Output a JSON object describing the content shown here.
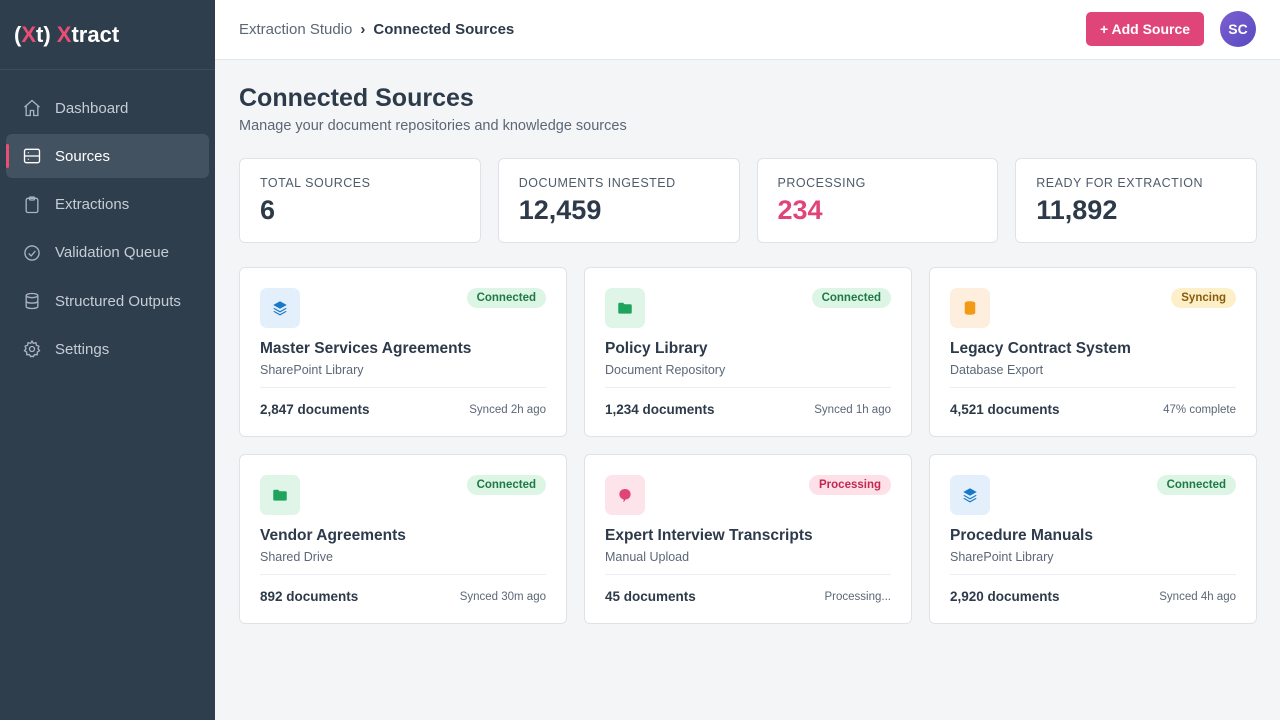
{
  "app": {
    "logo_paren_open": "(",
    "logo_x": "X",
    "logo_t_paren": "t)",
    "logo_space_x": "X",
    "logo_tract": "tract"
  },
  "sidebar": {
    "items": [
      {
        "label": "Dashboard",
        "icon": "home-icon"
      },
      {
        "label": "Sources",
        "icon": "database-icon",
        "active": true
      },
      {
        "label": "Extractions",
        "icon": "clipboard-icon"
      },
      {
        "label": "Validation Queue",
        "icon": "check-circle-icon"
      },
      {
        "label": "Structured Outputs",
        "icon": "cylinder-icon"
      },
      {
        "label": "Settings",
        "icon": "gear-icon"
      }
    ]
  },
  "header": {
    "breadcrumb_root": "Extraction Studio",
    "breadcrumb_sep": "›",
    "breadcrumb_current": "Connected Sources",
    "add_button": "+ Add Source",
    "avatar_initials": "SC"
  },
  "page": {
    "title": "Connected Sources",
    "subtitle": "Manage your document repositories and knowledge sources"
  },
  "stats": [
    {
      "label": "TOTAL SOURCES",
      "value": "6"
    },
    {
      "label": "DOCUMENTS INGESTED",
      "value": "12,459"
    },
    {
      "label": "PROCESSING",
      "value": "234",
      "accent": "#e0457a"
    },
    {
      "label": "READY FOR EXTRACTION",
      "value": "11,892"
    }
  ],
  "sources": [
    {
      "title": "Master Services Agreements",
      "type": "SharePoint Library",
      "status": "Connected",
      "documents": "2,847 documents",
      "sync": "Synced 2h ago",
      "icon": "layers-icon",
      "icon_bg": "#e3f0fc",
      "icon_color": "#1a78c8"
    },
    {
      "title": "Policy Library",
      "type": "Document Repository",
      "status": "Connected",
      "documents": "1,234 documents",
      "sync": "Synced 1h ago",
      "icon": "folder-icon",
      "icon_bg": "#dff5e8",
      "icon_color": "#1fa45d"
    },
    {
      "title": "Legacy Contract System",
      "type": "Database Export",
      "status": "Syncing",
      "documents": "4,521 documents",
      "sync": "47% complete",
      "icon": "database-icon",
      "icon_bg": "#fdeedd",
      "icon_color": "#f29a17"
    },
    {
      "title": "Vendor Agreements",
      "type": "Shared Drive",
      "status": "Connected",
      "documents": "892 documents",
      "sync": "Synced 30m ago",
      "icon": "folder-icon",
      "icon_bg": "#dff5e8",
      "icon_color": "#1fa45d"
    },
    {
      "title": "Expert Interview Transcripts",
      "type": "Manual Upload",
      "status": "Processing",
      "documents": "45 documents",
      "sync": "Processing...",
      "icon": "chat-bubble-icon",
      "icon_bg": "#fde3ea",
      "icon_color": "#e0457a"
    },
    {
      "title": "Procedure Manuals",
      "type": "SharePoint Library",
      "status": "Connected",
      "documents": "2,920 documents",
      "sync": "Synced 4h ago",
      "icon": "layers-icon",
      "icon_bg": "#e3f0fc",
      "icon_color": "#1a78c8"
    }
  ]
}
